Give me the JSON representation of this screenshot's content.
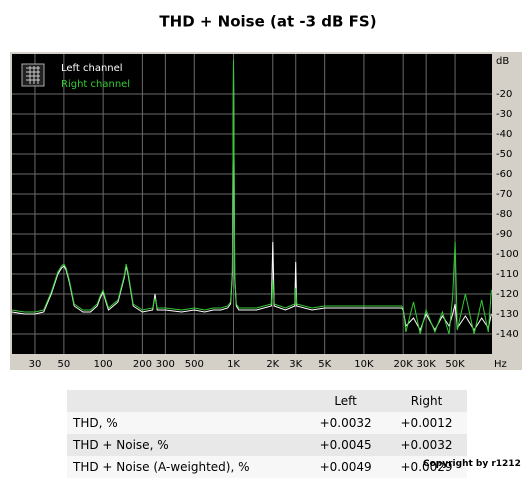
{
  "chart_data": {
    "type": "line",
    "title": "THD + Noise (at -3 dB FS)",
    "xlabel": "Hz",
    "ylabel": "dB",
    "xscale": "log",
    "grid": true,
    "legend": "top-left",
    "xlim": [
      20,
      96000
    ],
    "ylim": [
      -150,
      0
    ],
    "xticks": [
      30,
      50,
      100,
      200,
      300,
      500,
      {
        "value": 1000,
        "label": "1K"
      },
      {
        "value": 2000,
        "label": "2K"
      },
      {
        "value": 3000,
        "label": "3K"
      },
      {
        "value": 5000,
        "label": "5K"
      },
      {
        "value": 10000,
        "label": "10K"
      },
      {
        "value": 20000,
        "label": "20K"
      },
      {
        "value": 30000,
        "label": "30K"
      },
      {
        "value": 50000,
        "label": "50K"
      }
    ],
    "yticks": [
      -20,
      -30,
      -40,
      -50,
      -60,
      -70,
      -80,
      -90,
      -100,
      -110,
      -120,
      -130,
      -140
    ],
    "x": [
      20,
      25,
      30,
      35,
      40,
      45,
      48,
      50,
      52,
      55,
      60,
      70,
      80,
      90,
      95,
      100,
      105,
      110,
      130,
      145,
      150,
      155,
      170,
      200,
      240,
      250,
      260,
      300,
      400,
      500,
      600,
      700,
      800,
      900,
      950,
      980,
      1000,
      1020,
      1050,
      1100,
      1500,
      1950,
      2000,
      2050,
      2500,
      2950,
      3000,
      3050,
      4000,
      5000,
      7000,
      10000,
      15000,
      19500,
      20000,
      21000,
      24000,
      27000,
      30000,
      35000,
      40000,
      45000,
      48000,
      50000,
      52000,
      60000,
      70000,
      80000,
      90000,
      95000
    ],
    "series": [
      {
        "name": "Left channel",
        "color": "#ffffff",
        "values": [
          -129,
          -130,
          -130,
          -129,
          -120,
          -110,
          -107,
          -106,
          -108,
          -114,
          -126,
          -129,
          -129,
          -126,
          -122,
          -119,
          -124,
          -128,
          -124,
          -112,
          -106,
          -110,
          -126,
          -129,
          -128,
          -120,
          -128,
          -128,
          -129,
          -128,
          -129,
          -128,
          -128,
          -127,
          -125,
          -110,
          -3,
          -112,
          -126,
          -128,
          -128,
          -126,
          -94,
          -126,
          -128,
          -126,
          -104,
          -126,
          -128,
          -127,
          -127,
          -127,
          -127,
          -127,
          -128,
          -136,
          -132,
          -138,
          -130,
          -138,
          -131,
          -136,
          -130,
          -125,
          -137,
          -131,
          -138,
          -132,
          -137,
          -130
        ]
      },
      {
        "name": "Right channel",
        "color": "#33cc33",
        "values": [
          -128,
          -129,
          -129,
          -128,
          -119,
          -109,
          -106,
          -105,
          -107,
          -113,
          -125,
          -128,
          -128,
          -125,
          -121,
          -118,
          -123,
          -127,
          -123,
          -111,
          -105,
          -109,
          -125,
          -128,
          -127,
          -122,
          -127,
          -127,
          -128,
          -127,
          -128,
          -127,
          -127,
          -126,
          -124,
          -108,
          -3,
          -110,
          -125,
          -127,
          -127,
          -125,
          -113,
          -125,
          -127,
          -125,
          -117,
          -125,
          -127,
          -126,
          -126,
          -126,
          -126,
          -126,
          -127,
          -139,
          -124,
          -140,
          -128,
          -139,
          -129,
          -140,
          -121,
          -94,
          -138,
          -120,
          -140,
          -123,
          -139,
          -118
        ]
      }
    ]
  },
  "table": {
    "columns": [
      "Left",
      "Right"
    ],
    "rows": [
      [
        "THD, %",
        "+0.0032",
        "+0.0012"
      ],
      [
        "THD + Noise, %",
        "+0.0045",
        "+0.0032"
      ],
      [
        "THD + Noise (A-weighted), %",
        "+0.0049",
        "+0.0029"
      ]
    ]
  },
  "copyright": "Copyright by r1212"
}
